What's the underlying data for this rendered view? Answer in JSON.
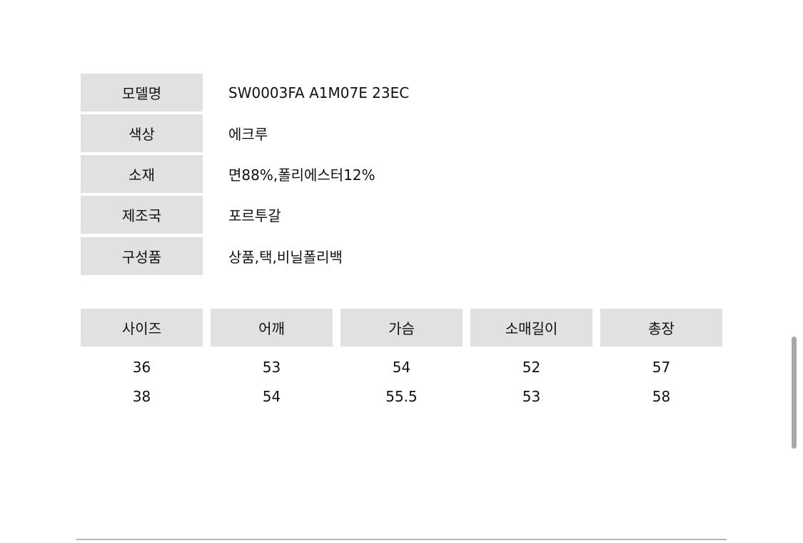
{
  "info": [
    {
      "label": "모델명",
      "value": "SW0003FA A1M07E 23EC"
    },
    {
      "label": "색상",
      "value": "에크루"
    },
    {
      "label": "소재",
      "value": "면88%,폴리에스터12%"
    },
    {
      "label": "제조국",
      "value": "포르투갈"
    },
    {
      "label": "구성품",
      "value": "상품,택,비닐폴리백"
    }
  ],
  "size_table": {
    "headers": [
      "사이즈",
      "어깨",
      "가슴",
      "소매길이",
      "총장"
    ],
    "rows": [
      [
        "36",
        "53",
        "54",
        "52",
        "57"
      ],
      [
        "38",
        "54",
        "55.5",
        "53",
        "58"
      ]
    ]
  }
}
